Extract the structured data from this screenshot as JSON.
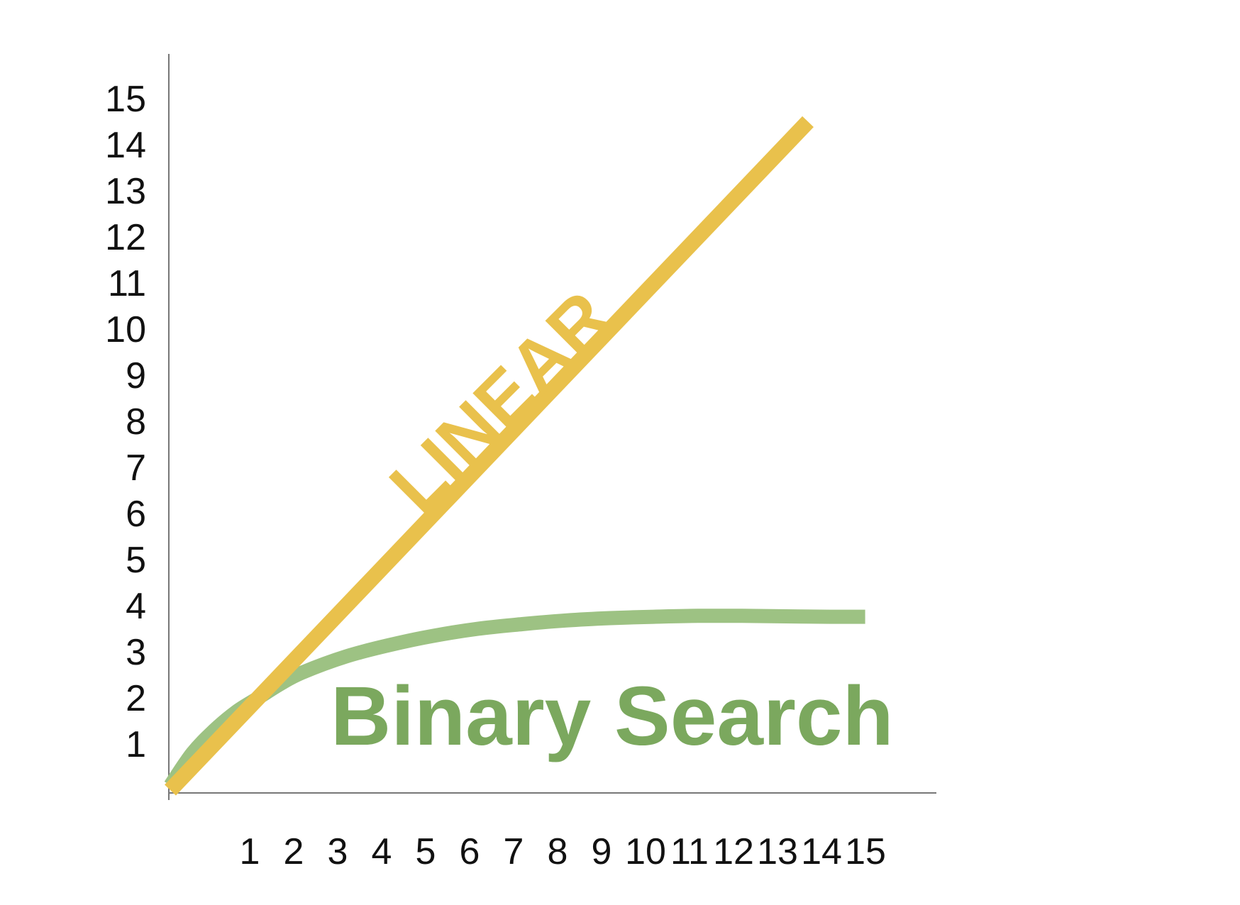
{
  "chart_data": {
    "type": "line",
    "title": "",
    "xlabel": "",
    "ylabel": "",
    "x_ticks": [
      "1",
      "2",
      "3",
      "4",
      "5",
      "6",
      "7",
      "8",
      "9",
      "10",
      "11",
      "12",
      "13",
      "14",
      "15"
    ],
    "y_ticks": [
      "1",
      "2",
      "3",
      "4",
      "5",
      "6",
      "7",
      "8",
      "9",
      "10",
      "11",
      "12",
      "13",
      "14",
      "15"
    ],
    "xlim": [
      0,
      15.8
    ],
    "ylim": [
      0,
      15.7
    ],
    "grid": false,
    "legend": "none",
    "series": [
      {
        "name": "LINEAR",
        "color": "#E9C14C",
        "x": [
          0,
          14.5
        ],
        "y": [
          0,
          14.5
        ]
      },
      {
        "name": "Binary Search",
        "color": "#9DC283",
        "x": [
          0,
          0.5,
          1,
          1.5,
          2,
          2.5,
          3,
          4,
          5,
          6,
          7,
          8,
          9,
          10,
          11,
          12,
          13,
          14,
          15,
          15.8
        ],
        "y": [
          0.1,
          0.8,
          1.3,
          1.7,
          2.0,
          2.3,
          2.55,
          2.9,
          3.15,
          3.35,
          3.5,
          3.6,
          3.68,
          3.73,
          3.76,
          3.78,
          3.78,
          3.77,
          3.76,
          3.76
        ]
      }
    ],
    "annotations": [
      {
        "text": "LINEAR",
        "color": "#E9C14C"
      },
      {
        "text": "Binary Search",
        "color": "#7BA85E"
      }
    ]
  }
}
